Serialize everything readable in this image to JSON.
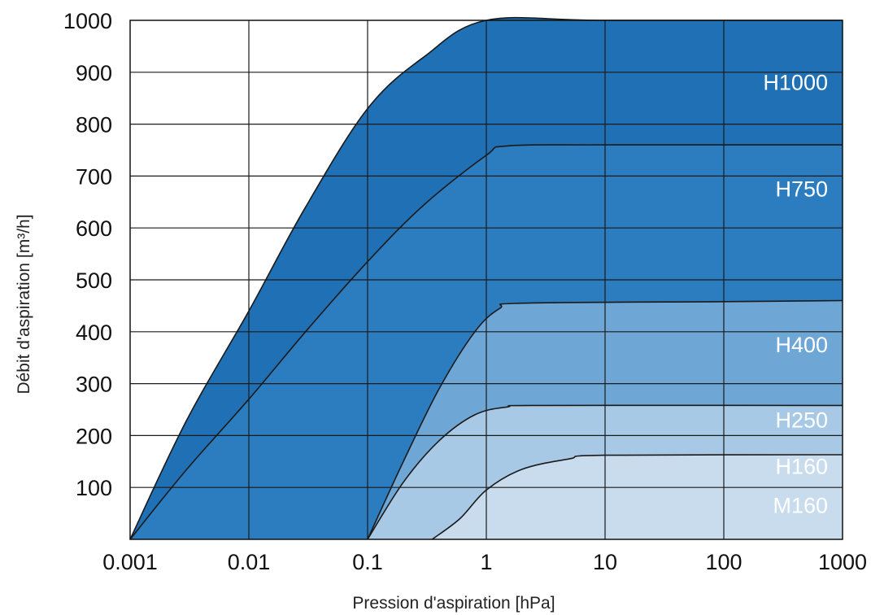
{
  "chart_data": {
    "type": "area",
    "xlabel": "Pression d'aspiration [hPa]",
    "ylabel": "Débit d'aspiration [m³/h]",
    "x_scale": "log",
    "xlim": [
      0.001,
      1000
    ],
    "ylim": [
      0,
      1000
    ],
    "x_ticks": [
      0.001,
      0.01,
      0.1,
      1,
      10,
      100,
      1000
    ],
    "x_tick_labels": [
      "0.001",
      "0.01",
      "0.1",
      "1",
      "10",
      "100",
      "1000"
    ],
    "y_ticks": [
      100,
      200,
      300,
      400,
      500,
      600,
      700,
      800,
      900,
      1000
    ],
    "y_tick_labels": [
      "100",
      "200",
      "300",
      "400",
      "500",
      "600",
      "700",
      "800",
      "900",
      "1000"
    ],
    "grid": true,
    "series": [
      {
        "name": "H1000",
        "color": "#1f70b4",
        "label_y": 880,
        "points": [
          [
            0.001,
            0
          ],
          [
            0.003,
            230
          ],
          [
            0.01,
            440
          ],
          [
            0.03,
            640
          ],
          [
            0.1,
            830
          ],
          [
            0.3,
            930
          ],
          [
            1,
            1000
          ],
          [
            10,
            1000
          ],
          [
            1000,
            1000
          ]
        ]
      },
      {
        "name": "H750",
        "color": "#2b7dc0",
        "label_y": 675,
        "points": [
          [
            0.001,
            0
          ],
          [
            0.003,
            135
          ],
          [
            0.01,
            270
          ],
          [
            0.03,
            400
          ],
          [
            0.1,
            535
          ],
          [
            0.3,
            645
          ],
          [
            1,
            740
          ],
          [
            1.5,
            758
          ],
          [
            10,
            760
          ],
          [
            1000,
            760
          ]
        ]
      },
      {
        "name": "H400",
        "color": "#6ea6d6",
        "label_y": 375,
        "points": [
          [
            0.1,
            0
          ],
          [
            0.2,
            150
          ],
          [
            0.4,
            290
          ],
          [
            0.8,
            400
          ],
          [
            1.3,
            445
          ],
          [
            2,
            455
          ],
          [
            100,
            458
          ],
          [
            1000,
            460
          ]
        ]
      },
      {
        "name": "H250",
        "color": "#a8c9e5",
        "label_y": 230,
        "points": [
          [
            0.1,
            0
          ],
          [
            0.2,
            110
          ],
          [
            0.4,
            190
          ],
          [
            0.8,
            240
          ],
          [
            1.5,
            255
          ],
          [
            3,
            258
          ],
          [
            1000,
            258
          ]
        ]
      },
      {
        "name": "H160",
        "color": "#c9dcee",
        "label_y": 140,
        "points": [
          [
            0.35,
            0
          ],
          [
            0.6,
            40
          ],
          [
            1,
            95
          ],
          [
            2,
            135
          ],
          [
            5,
            155
          ],
          [
            10,
            162
          ],
          [
            1000,
            163
          ]
        ]
      },
      {
        "name": "M160",
        "color": "#e3ecf5",
        "label_y": 65,
        "points": []
      }
    ]
  }
}
